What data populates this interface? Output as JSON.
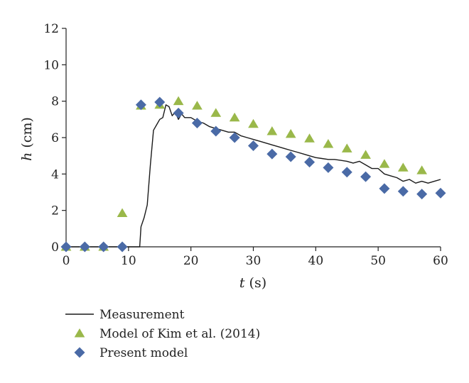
{
  "chart_data": {
    "type": "scatter",
    "xlabel": {
      "var": "t",
      "unit": " (s)"
    },
    "ylabel": {
      "var": "h",
      "unit": " (cm)"
    },
    "xlim": [
      0,
      60
    ],
    "ylim": [
      0,
      12
    ],
    "xticks": [
      0,
      10,
      20,
      30,
      40,
      50,
      60
    ],
    "yticks": [
      0,
      2,
      4,
      6,
      8,
      10,
      12
    ],
    "grid": false,
    "legend_position": "bottom-left",
    "series": [
      {
        "name": "Measurement",
        "kind": "line",
        "color": "#1a1a1a",
        "x": [
          0,
          11.8,
          12,
          12.5,
          13,
          13.5,
          14,
          14.5,
          15,
          15.5,
          16,
          16.5,
          17,
          17.5,
          18,
          18.5,
          19,
          20,
          21,
          22,
          23,
          24,
          25,
          26,
          27,
          28,
          29,
          30,
          31,
          32,
          33,
          34,
          35,
          36,
          37,
          38,
          39,
          40,
          41,
          42,
          43,
          44,
          45,
          46,
          47,
          48,
          49,
          50,
          51,
          52,
          53,
          54,
          55,
          56,
          57,
          58,
          59,
          60
        ],
        "y": [
          0,
          0,
          1.1,
          1.6,
          2.3,
          4.5,
          6.4,
          6.7,
          7.0,
          7.1,
          7.8,
          7.7,
          7.2,
          7.4,
          7.0,
          7.3,
          7.1,
          7.1,
          6.9,
          6.8,
          6.6,
          6.5,
          6.4,
          6.3,
          6.3,
          6.1,
          6.0,
          5.9,
          5.8,
          5.7,
          5.6,
          5.5,
          5.4,
          5.3,
          5.2,
          5.1,
          5.0,
          4.9,
          4.85,
          4.8,
          4.8,
          4.75,
          4.7,
          4.6,
          4.7,
          4.5,
          4.3,
          4.3,
          4.0,
          3.9,
          3.8,
          3.6,
          3.7,
          3.5,
          3.6,
          3.5,
          3.6,
          3.7
        ]
      },
      {
        "name": "Model of Kim et al. (2014)",
        "kind": "marker",
        "marker": "triangle",
        "color": "#9ab84a",
        "x": [
          0,
          3,
          6,
          9,
          12,
          15,
          18,
          21,
          24,
          27,
          30,
          33,
          36,
          39,
          42,
          45,
          48,
          51,
          54,
          57
        ],
        "y": [
          0,
          0,
          0,
          1.85,
          7.75,
          7.8,
          8.0,
          7.75,
          7.35,
          7.1,
          6.75,
          6.35,
          6.2,
          5.95,
          5.65,
          5.4,
          5.05,
          4.55,
          4.35,
          4.2
        ]
      },
      {
        "name": "Present model",
        "kind": "marker",
        "marker": "diamond",
        "color": "#4a6aa6",
        "x": [
          0,
          3,
          6,
          9,
          12,
          15,
          18,
          21,
          24,
          27,
          30,
          33,
          36,
          39,
          42,
          45,
          48,
          51,
          54,
          57,
          60
        ],
        "y": [
          0,
          0,
          0,
          0,
          7.8,
          7.95,
          7.35,
          6.8,
          6.35,
          6.0,
          5.55,
          5.1,
          4.95,
          4.65,
          4.35,
          4.1,
          3.85,
          3.2,
          3.05,
          2.9,
          2.95
        ]
      }
    ]
  }
}
